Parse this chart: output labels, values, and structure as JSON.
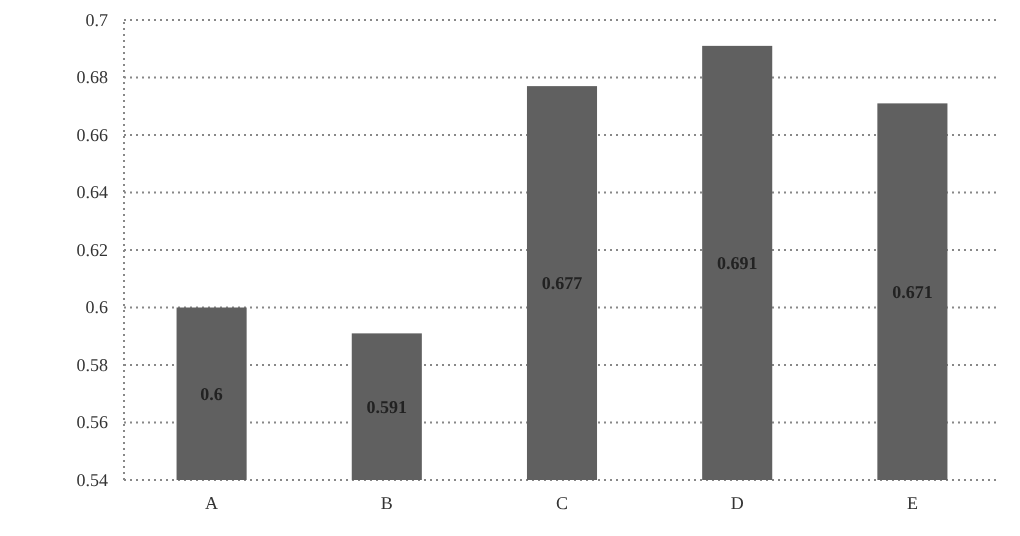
{
  "chart_data": {
    "type": "bar",
    "categories": [
      "A",
      "B",
      "C",
      "D",
      "E"
    ],
    "values": [
      0.6,
      0.591,
      0.677,
      0.691,
      0.671
    ],
    "color": "#606060",
    "ylim": [
      0.54,
      0.7
    ],
    "yticks": [
      0.54,
      0.56,
      0.58,
      0.6,
      0.62,
      0.64,
      0.66,
      0.68,
      0.7
    ],
    "grid": "y",
    "data_labels": true
  }
}
